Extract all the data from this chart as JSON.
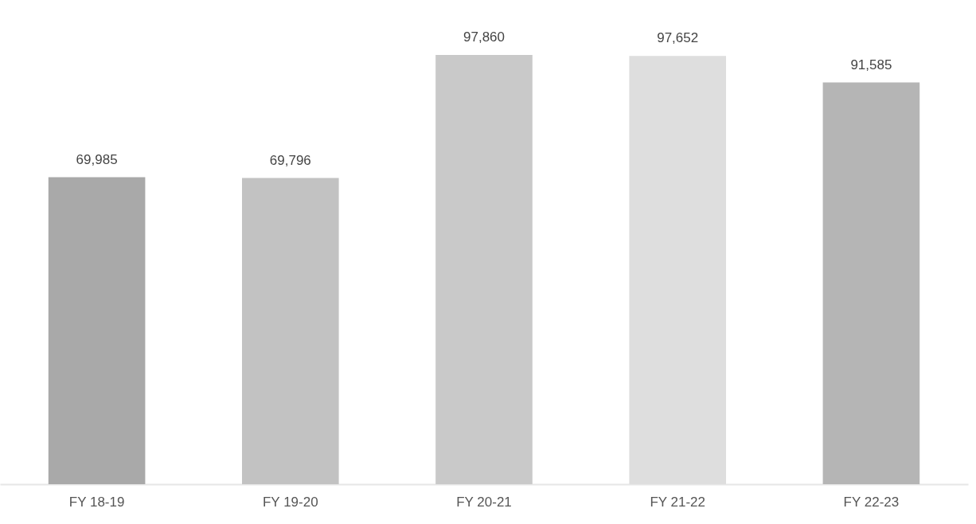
{
  "chart_data": {
    "type": "bar",
    "categories": [
      "FY 18-19",
      "FY 19-20",
      "FY 20-21",
      "FY 21-22",
      "FY 22-23"
    ],
    "values": [
      69985,
      69796,
      97860,
      97652,
      91585
    ],
    "colors": [
      "#a9a9a9",
      "#c2c2c2",
      "#c9c9c9",
      "#dedede",
      "#b5b5b5"
    ],
    "value_labels": [
      "69,985",
      "69,796",
      "97,860",
      "97,652",
      "91,585"
    ]
  }
}
